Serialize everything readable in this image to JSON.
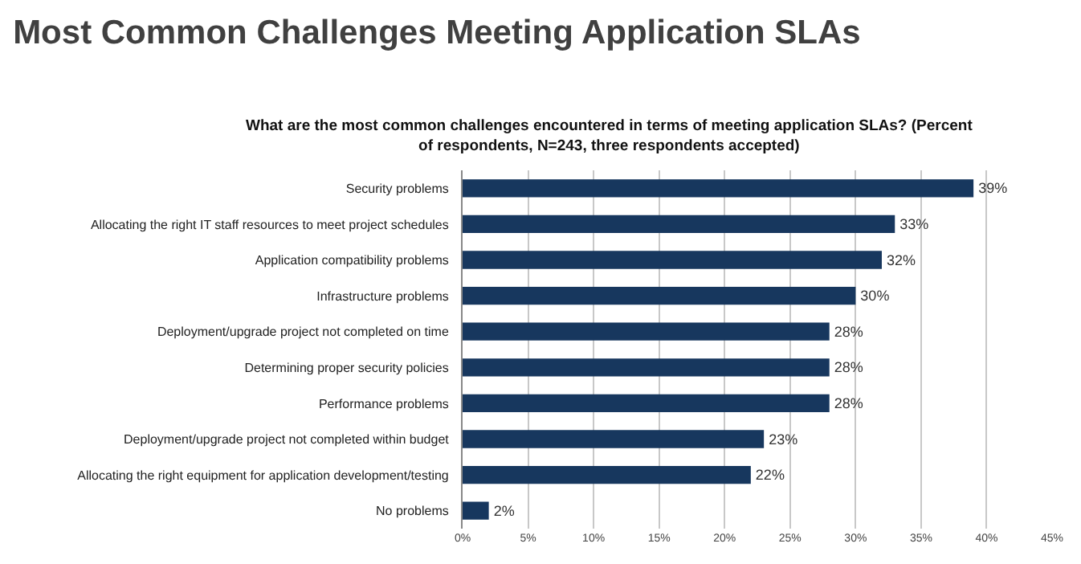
{
  "chart_data": {
    "type": "bar",
    "orientation": "horizontal",
    "title": "Most Common Challenges Meeting Application SLAs",
    "subtitle": "What are the most common challenges encountered in terms of meeting application SLAs? (Percent of respondents, N=243, three respondents accepted)",
    "categories": [
      "Security problems",
      "Allocating the right IT staff resources to meet project schedules",
      "Application compatibility problems",
      "Infrastructure problems",
      "Deployment/upgrade project not completed on time",
      "Determining proper security policies",
      "Performance problems",
      "Deployment/upgrade project not completed within budget",
      "Allocating the right equipment for application development/testing",
      "No problems"
    ],
    "values": [
      39,
      33,
      32,
      30,
      28,
      28,
      28,
      23,
      22,
      2
    ],
    "value_labels": [
      "39%",
      "33%",
      "32%",
      "30%",
      "28%",
      "28%",
      "28%",
      "23%",
      "22%",
      "2%"
    ],
    "color": "#17375e",
    "xlim": [
      0,
      45
    ],
    "xticks": [
      {
        "value": 0,
        "label": "0%"
      },
      {
        "value": 5,
        "label": "5%"
      },
      {
        "value": 10,
        "label": "10%"
      },
      {
        "value": 15,
        "label": "15%"
      },
      {
        "value": 20,
        "label": "20%"
      },
      {
        "value": 25,
        "label": "25%"
      },
      {
        "value": 30,
        "label": "30%"
      },
      {
        "value": 35,
        "label": "35%"
      },
      {
        "value": 40,
        "label": "40%"
      },
      {
        "value": 45,
        "label": "45%"
      }
    ],
    "grid": "x",
    "legend": false
  }
}
